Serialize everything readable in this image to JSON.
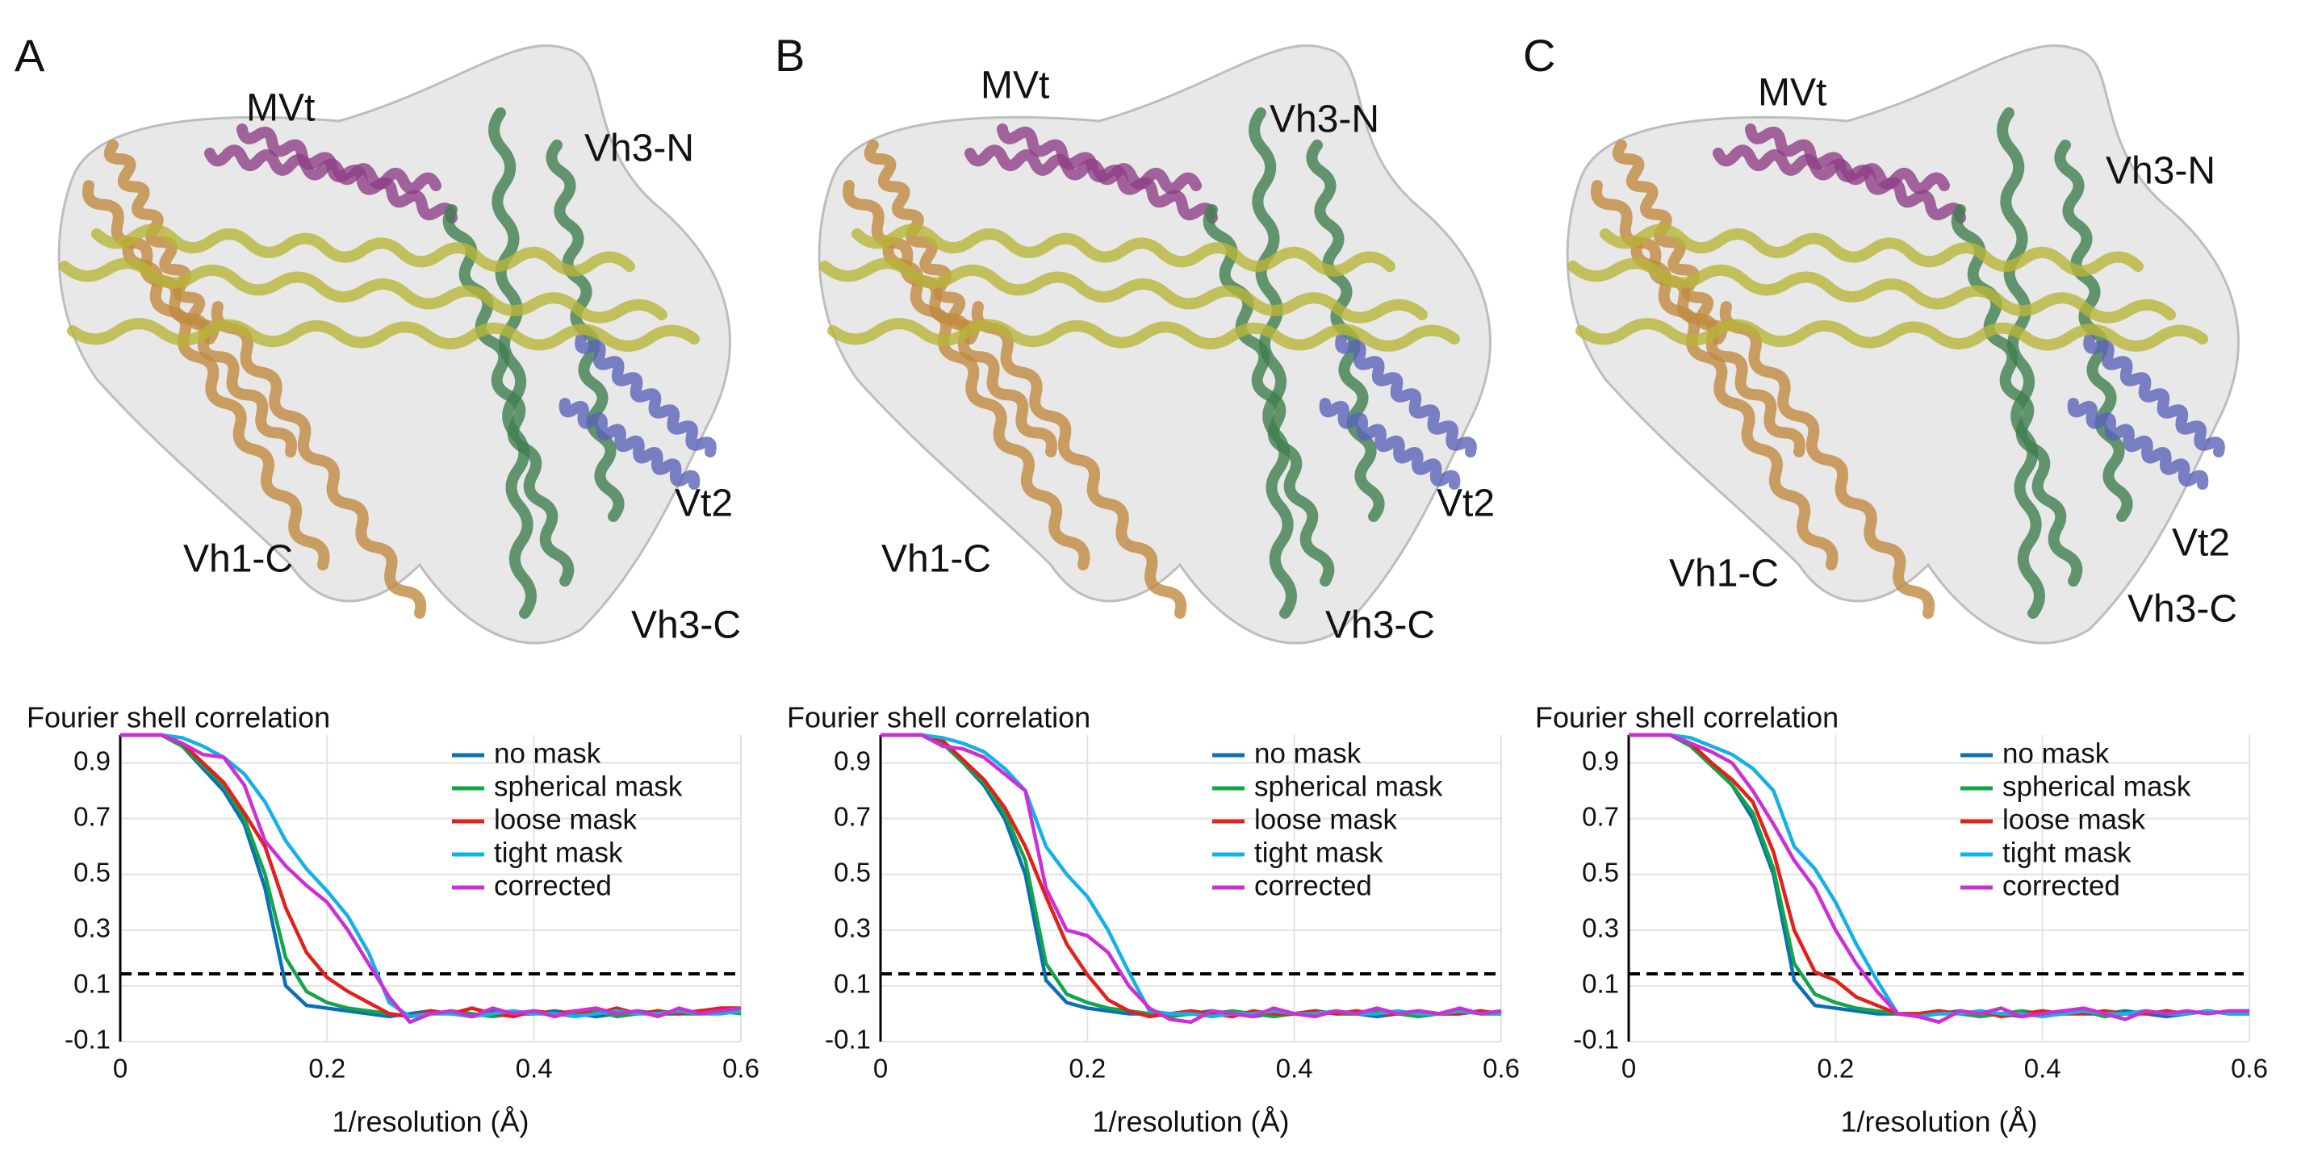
{
  "panels": [
    {
      "label": "A",
      "structure_labels": [
        "MVt",
        "Vh3-N",
        "Vt2",
        "Vh1-C",
        "Vh3-C"
      ]
    },
    {
      "label": "B",
      "structure_labels": [
        "MVt",
        "Vh3-N",
        "Vt2",
        "Vh1-C",
        "Vh3-C"
      ]
    },
    {
      "label": "C",
      "structure_labels": [
        "MVt",
        "Vh3-N",
        "Vt2",
        "Vh1-C",
        "Vh3-C"
      ]
    }
  ],
  "chart_data": [
    {
      "type": "line",
      "title": "Fourier shell correlation",
      "x_label": "1/resolution (Å)",
      "xlim": [
        0,
        0.6
      ],
      "ylim": [
        -0.1,
        1.0
      ],
      "xticks": [
        0,
        0.2,
        0.4,
        0.6
      ],
      "yticks": [
        -0.1,
        0.1,
        0.3,
        0.5,
        0.7,
        0.9
      ],
      "grid": true,
      "threshold": 0.143,
      "x": [
        0,
        0.02,
        0.04,
        0.06,
        0.08,
        0.1,
        0.12,
        0.14,
        0.16,
        0.18,
        0.2,
        0.22,
        0.24,
        0.26,
        0.28,
        0.3,
        0.32,
        0.34,
        0.36,
        0.38,
        0.4,
        0.42,
        0.44,
        0.46,
        0.48,
        0.5,
        0.52,
        0.54,
        0.56,
        0.58,
        0.6
      ],
      "series": [
        {
          "name": "no mask",
          "color": "#0a6fb8",
          "values": [
            1,
            1,
            1,
            0.96,
            0.88,
            0.8,
            0.68,
            0.45,
            0.1,
            0.03,
            0.02,
            0.01,
            0,
            -0.01,
            0,
            0.01,
            0,
            -0.01,
            0.01,
            0,
            0,
            0.01,
            0,
            -0.01,
            0,
            0.01,
            0,
            0,
            0.01,
            0,
            0.01
          ]
        },
        {
          "name": "spherical mask",
          "color": "#12a54a",
          "values": [
            1,
            1,
            1,
            0.96,
            0.89,
            0.82,
            0.7,
            0.5,
            0.2,
            0.08,
            0.04,
            0.02,
            0.01,
            0,
            -0.01,
            0,
            0.01,
            0,
            -0.01,
            0,
            0.01,
            0,
            0,
            0.01,
            -0.01,
            0,
            0.01,
            0,
            0,
            0.01,
            0
          ]
        },
        {
          "name": "loose mask",
          "color": "#e3201b",
          "values": [
            1,
            1,
            1,
            0.97,
            0.9,
            0.83,
            0.72,
            0.6,
            0.38,
            0.22,
            0.13,
            0.08,
            0.04,
            0,
            -0.01,
            0.01,
            0,
            0.02,
            0,
            -0.01,
            0.01,
            0,
            0.01,
            0,
            0.02,
            0,
            0.01,
            0,
            0.01,
            0.02,
            0.02
          ]
        },
        {
          "name": "tight mask",
          "color": "#13b1e6",
          "values": [
            1,
            1,
            1,
            0.99,
            0.96,
            0.92,
            0.86,
            0.76,
            0.62,
            0.52,
            0.44,
            0.35,
            0.22,
            0.04,
            -0.01,
            0,
            0,
            -0.01,
            0,
            0.01,
            0,
            0,
            -0.01,
            0,
            0.01,
            0,
            0,
            0.01,
            0,
            0,
            0.01
          ]
        },
        {
          "name": "corrected",
          "color": "#cc2fd6",
          "values": [
            1,
            1,
            1,
            0.97,
            0.93,
            0.92,
            0.82,
            0.62,
            0.53,
            0.46,
            0.4,
            0.3,
            0.18,
            0.06,
            -0.03,
            0,
            0.01,
            -0.01,
            0.02,
            0,
            0.01,
            -0.01,
            0.01,
            0.02,
            0,
            0.01,
            -0.01,
            0.02,
            0,
            0.01,
            0.02
          ]
        }
      ]
    },
    {
      "type": "line",
      "title": "Fourier shell correlation",
      "x_label": "1/resolution (Å)",
      "xlim": [
        0,
        0.6
      ],
      "ylim": [
        -0.1,
        1.0
      ],
      "xticks": [
        0,
        0.2,
        0.4,
        0.6
      ],
      "yticks": [
        -0.1,
        0.1,
        0.3,
        0.5,
        0.7,
        0.9
      ],
      "grid": true,
      "threshold": 0.143,
      "x": [
        0,
        0.02,
        0.04,
        0.06,
        0.08,
        0.1,
        0.12,
        0.14,
        0.16,
        0.18,
        0.2,
        0.22,
        0.24,
        0.26,
        0.28,
        0.3,
        0.32,
        0.34,
        0.36,
        0.38,
        0.4,
        0.42,
        0.44,
        0.46,
        0.48,
        0.5,
        0.52,
        0.54,
        0.56,
        0.58,
        0.6
      ],
      "series": [
        {
          "name": "no mask",
          "color": "#0a6fb8",
          "values": [
            1,
            1,
            1,
            0.97,
            0.9,
            0.82,
            0.7,
            0.5,
            0.12,
            0.04,
            0.02,
            0.01,
            0,
            0,
            -0.01,
            0,
            0.01,
            0,
            -0.01,
            0,
            0,
            0.01,
            0,
            0,
            -0.01,
            0,
            0.01,
            0,
            0,
            0.01,
            0
          ]
        },
        {
          "name": "spherical mask",
          "color": "#12a54a",
          "values": [
            1,
            1,
            1,
            0.97,
            0.9,
            0.83,
            0.72,
            0.55,
            0.18,
            0.07,
            0.04,
            0.02,
            0.01,
            0,
            -0.01,
            0,
            0,
            0.01,
            0,
            -0.01,
            0,
            0.01,
            0,
            0,
            0.01,
            0,
            -0.01,
            0,
            0.01,
            0,
            0
          ]
        },
        {
          "name": "loose mask",
          "color": "#e3201b",
          "values": [
            1,
            1,
            1,
            0.98,
            0.91,
            0.84,
            0.74,
            0.6,
            0.42,
            0.25,
            0.14,
            0.05,
            0.01,
            -0.01,
            0,
            0.01,
            0,
            -0.01,
            0.01,
            0,
            0,
            0.01,
            0,
            0.01,
            0,
            0,
            0.01,
            0,
            0,
            0.01,
            0
          ]
        },
        {
          "name": "tight mask",
          "color": "#13b1e6",
          "values": [
            1,
            1,
            1,
            0.99,
            0.97,
            0.94,
            0.88,
            0.8,
            0.6,
            0.5,
            0.42,
            0.3,
            0.15,
            0.01,
            0,
            0,
            -0.01,
            0,
            0,
            0.01,
            0,
            0,
            0.01,
            0,
            0,
            0.01,
            0,
            0,
            0.01,
            0,
            0
          ]
        },
        {
          "name": "corrected",
          "color": "#cc2fd6",
          "values": [
            1,
            1,
            1,
            0.96,
            0.95,
            0.92,
            0.86,
            0.8,
            0.45,
            0.3,
            0.28,
            0.22,
            0.1,
            0.02,
            -0.02,
            -0.03,
            0.01,
            0,
            -0.01,
            0.02,
            0,
            -0.01,
            0.01,
            0,
            0.02,
            0,
            0.01,
            0,
            0.02,
            0,
            0.01
          ]
        }
      ]
    },
    {
      "type": "line",
      "title": "Fourier shell correlation",
      "x_label": "1/resolution (Å)",
      "xlim": [
        0,
        0.6
      ],
      "ylim": [
        -0.1,
        1.0
      ],
      "xticks": [
        0,
        0.2,
        0.4,
        0.6
      ],
      "yticks": [
        -0.1,
        0.1,
        0.3,
        0.5,
        0.7,
        0.9
      ],
      "grid": true,
      "threshold": 0.143,
      "x": [
        0,
        0.02,
        0.04,
        0.06,
        0.08,
        0.1,
        0.12,
        0.14,
        0.16,
        0.18,
        0.2,
        0.22,
        0.24,
        0.26,
        0.28,
        0.3,
        0.32,
        0.34,
        0.36,
        0.38,
        0.4,
        0.42,
        0.44,
        0.46,
        0.48,
        0.5,
        0.52,
        0.54,
        0.56,
        0.58,
        0.6
      ],
      "series": [
        {
          "name": "no mask",
          "color": "#0a6fb8",
          "values": [
            1,
            1,
            1,
            0.97,
            0.9,
            0.82,
            0.7,
            0.5,
            0.12,
            0.03,
            0.02,
            0.01,
            0,
            0,
            -0.01,
            0,
            0.01,
            0,
            0,
            -0.01,
            0,
            0.01,
            0,
            0,
            0.01,
            0,
            -0.01,
            0,
            0.01,
            0,
            0
          ]
        },
        {
          "name": "spherical mask",
          "color": "#12a54a",
          "values": [
            1,
            1,
            1,
            0.96,
            0.89,
            0.82,
            0.72,
            0.52,
            0.18,
            0.07,
            0.04,
            0.02,
            0.01,
            0,
            0,
            0.01,
            0,
            -0.01,
            0,
            0.01,
            0,
            0,
            0.01,
            -0.01,
            0,
            0.01,
            0,
            0,
            0.01,
            0,
            0.01
          ]
        },
        {
          "name": "loose mask",
          "color": "#e3201b",
          "values": [
            1,
            1,
            1,
            0.97,
            0.9,
            0.84,
            0.76,
            0.58,
            0.3,
            0.15,
            0.12,
            0.06,
            0.03,
            0,
            0,
            0.01,
            0,
            0.01,
            -0.01,
            0,
            0.01,
            0,
            0,
            0.01,
            0,
            0,
            0.01,
            0,
            0.01,
            0,
            0.01
          ]
        },
        {
          "name": "tight mask",
          "color": "#13b1e6",
          "values": [
            1,
            1,
            1,
            0.99,
            0.96,
            0.93,
            0.88,
            0.8,
            0.6,
            0.52,
            0.4,
            0.25,
            0.12,
            0,
            -0.01,
            0,
            0,
            0.01,
            0,
            0,
            -0.01,
            0,
            0.01,
            0,
            0,
            0.01,
            0,
            0,
            0.01,
            0,
            0
          ]
        },
        {
          "name": "corrected",
          "color": "#cc2fd6",
          "values": [
            1,
            1,
            1,
            0.97,
            0.94,
            0.9,
            0.8,
            0.68,
            0.55,
            0.45,
            0.3,
            0.18,
            0.08,
            0,
            -0.01,
            -0.03,
            0.01,
            0,
            0.02,
            -0.01,
            0,
            0.01,
            0.02,
            0,
            -0.02,
            0.01,
            0,
            0.01,
            0,
            0.01,
            0.01
          ]
        }
      ]
    }
  ]
}
